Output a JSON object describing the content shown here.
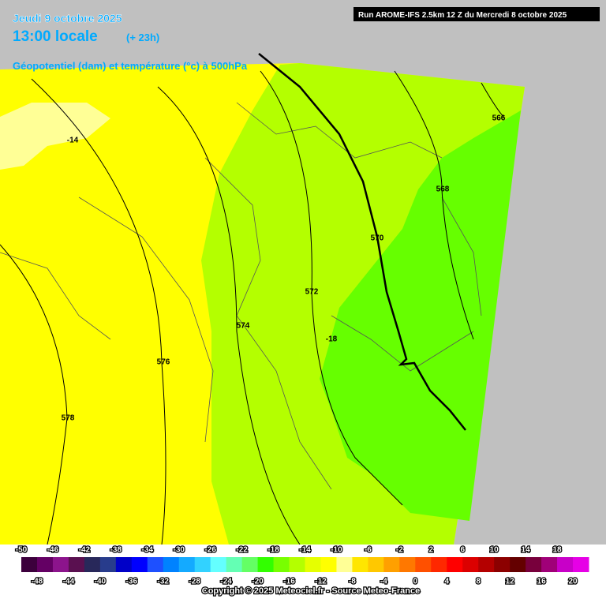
{
  "header": {
    "date": "Jeudi 9 octobre 2025",
    "time": "13:00 locale",
    "lead": "(+ 23h)",
    "field": "Géopotentiel (dam) et température (°c) à 500hPa",
    "run": "Run AROME-IFS 2.5km 12 Z du Mercredi 8 octobre 2025"
  },
  "contour_labels": [
    "566",
    "568",
    "570",
    "572",
    "574",
    "576",
    "578",
    "-14",
    "-18"
  ],
  "colorbar": {
    "labels": [
      -50,
      -48,
      -46,
      -44,
      -42,
      -40,
      -38,
      -36,
      -34,
      -32,
      -30,
      -28,
      -26,
      -24,
      -22,
      -20,
      -18,
      -16,
      -14,
      -12,
      -10,
      -8,
      -6,
      -4,
      -2,
      0,
      2,
      4,
      6,
      8,
      10,
      12,
      14,
      16,
      18,
      20
    ],
    "colors": [
      "#3c003c",
      "#640064",
      "#8c148c",
      "#5a1050",
      "#28285a",
      "#283c8c",
      "#0000c8",
      "#0000ff",
      "#1e50ff",
      "#0082ff",
      "#14aaff",
      "#32d2ff",
      "#64ffff",
      "#64ffb4",
      "#64ff64",
      "#32ff00",
      "#78ff00",
      "#b4ff00",
      "#e6ff00",
      "#ffff00",
      "#ffff96",
      "#ffe600",
      "#ffc800",
      "#ffa000",
      "#ff7800",
      "#ff5000",
      "#ff2800",
      "#ff0000",
      "#dc0000",
      "#b40000",
      "#8c0000",
      "#640000",
      "#78003c",
      "#a00078",
      "#c800c8",
      "#e600e6"
    ]
  },
  "footer": {
    "copyright": "Copyright © 2025 Meteociel.fr - Source Meteo-France"
  }
}
